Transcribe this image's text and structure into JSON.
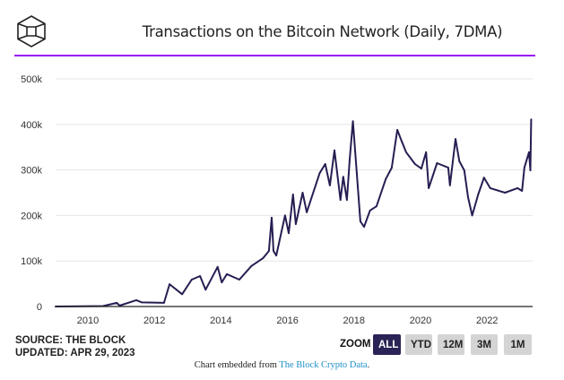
{
  "header": {
    "title": "Transactions on the Bitcoin Network (Daily, 7DMA)",
    "accent_color": "#9b17f5",
    "logo_icon": "the-block-cube-icon"
  },
  "footer": {
    "source": "SOURCE: THE BLOCK",
    "updated": "UPDATED: APR 29, 2023",
    "credit_prefix": "Chart embedded from ",
    "credit_link": "The Block Crypto Data",
    "credit_suffix": "."
  },
  "zoom": {
    "label": "ZOOM",
    "buttons": [
      "ALL",
      "YTD",
      "12M",
      "3M",
      "1M"
    ],
    "active": "ALL"
  },
  "chart_data": {
    "type": "line",
    "title": "Transactions on the Bitcoin Network (Daily, 7DMA)",
    "xlabel": "",
    "ylabel": "",
    "ylim": [
      0,
      500000
    ],
    "yticks": [
      0,
      100000,
      200000,
      300000,
      400000,
      500000
    ],
    "ytick_labels": [
      "0",
      "100k",
      "200k",
      "300k",
      "400k",
      "500k"
    ],
    "xticks": [
      "2010",
      "2012",
      "2014",
      "2016",
      "2018",
      "2020",
      "2022"
    ],
    "xlim": [
      "2009-01-10",
      "2023-04-29"
    ],
    "grid": true,
    "line_color": "#251f52",
    "series": [
      {
        "points": [
          [
            "2009-01-10",
            0
          ],
          [
            "2010-06-15",
            1000
          ],
          [
            "2010-11-15",
            8000
          ],
          [
            "2010-12-15",
            2000
          ],
          [
            "2011-06-15",
            14000
          ],
          [
            "2011-08-15",
            9000
          ],
          [
            "2012-04-15",
            8000
          ],
          [
            "2012-06-15",
            49000
          ],
          [
            "2012-11-01",
            27000
          ],
          [
            "2013-02-15",
            59000
          ],
          [
            "2013-05-15",
            67000
          ],
          [
            "2013-07-15",
            37000
          ],
          [
            "2013-11-25",
            87000
          ],
          [
            "2014-01-10",
            53000
          ],
          [
            "2014-03-05",
            71000
          ],
          [
            "2014-07-20",
            59000
          ],
          [
            "2014-12-01",
            89000
          ],
          [
            "2015-04-05",
            106000
          ],
          [
            "2015-06-10",
            122000
          ],
          [
            "2015-07-10",
            195000
          ],
          [
            "2015-07-30",
            122000
          ],
          [
            "2015-08-30",
            112000
          ],
          [
            "2015-12-05",
            200000
          ],
          [
            "2016-01-15",
            161000
          ],
          [
            "2016-03-01",
            246000
          ],
          [
            "2016-04-01",
            181000
          ],
          [
            "2016-06-15",
            250000
          ],
          [
            "2016-07-30",
            207000
          ],
          [
            "2016-12-20",
            293000
          ],
          [
            "2017-02-20",
            313000
          ],
          [
            "2017-04-10",
            266000
          ],
          [
            "2017-05-30",
            343000
          ],
          [
            "2017-08-05",
            234000
          ],
          [
            "2017-09-05",
            285000
          ],
          [
            "2017-10-15",
            234000
          ],
          [
            "2017-11-15",
            323000
          ],
          [
            "2017-12-20",
            407000
          ],
          [
            "2018-02-01",
            293000
          ],
          [
            "2018-03-10",
            187000
          ],
          [
            "2018-04-20",
            175000
          ],
          [
            "2018-06-25",
            211000
          ],
          [
            "2018-09-05",
            220000
          ],
          [
            "2018-12-15",
            280000
          ],
          [
            "2019-02-20",
            305000
          ],
          [
            "2019-04-20",
            388000
          ],
          [
            "2019-06-05",
            364000
          ],
          [
            "2019-07-25",
            339000
          ],
          [
            "2019-11-01",
            313000
          ],
          [
            "2020-01-10",
            303000
          ],
          [
            "2020-03-01",
            339000
          ],
          [
            "2020-03-30",
            260000
          ],
          [
            "2020-06-30",
            315000
          ],
          [
            "2020-11-01",
            305000
          ],
          [
            "2020-11-20",
            266000
          ],
          [
            "2021-01-20",
            368000
          ],
          [
            "2021-03-01",
            319000
          ],
          [
            "2021-04-25",
            299000
          ],
          [
            "2021-06-05",
            240000
          ],
          [
            "2021-07-20",
            200000
          ],
          [
            "2021-09-25",
            246000
          ],
          [
            "2021-11-28",
            283000
          ],
          [
            "2022-02-05",
            260000
          ],
          [
            "2022-07-15",
            250000
          ],
          [
            "2022-11-30",
            260000
          ],
          [
            "2023-01-20",
            254000
          ],
          [
            "2023-02-15",
            305000
          ],
          [
            "2023-04-05",
            339000
          ],
          [
            "2023-04-20",
            299000
          ],
          [
            "2023-04-29",
            411000
          ]
        ]
      }
    ]
  }
}
